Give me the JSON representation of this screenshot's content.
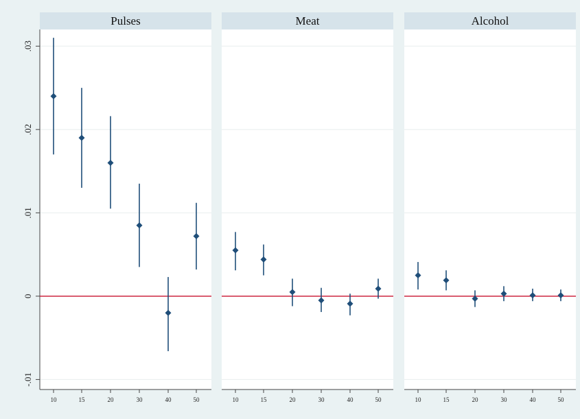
{
  "chart_data": {
    "type": "scatter",
    "subtype": "coefficient-plot-with-confidence-intervals",
    "categories": [
      "10",
      "15",
      "20",
      "30",
      "40",
      "50"
    ],
    "y_ticks": [
      -0.01,
      0,
      0.01,
      0.02,
      0.03
    ],
    "y_tick_labels": [
      "-.01",
      "0",
      ".01",
      ".02",
      ".03"
    ],
    "ylim": [
      -0.0112,
      0.032
    ],
    "reference_line": {
      "y": 0,
      "color": "#c8102e"
    },
    "grid": true,
    "colors": {
      "marker": "#1f4e79",
      "panel_header": "#d6e3ea",
      "panel_bg": "#ffffff",
      "background": "#eaf2f3",
      "grid": "#e8eeee"
    },
    "panels": [
      {
        "title": "Pulses",
        "points": [
          {
            "x": "10",
            "y": 0.024,
            "lo": 0.017,
            "hi": 0.031
          },
          {
            "x": "15",
            "y": 0.019,
            "lo": 0.013,
            "hi": 0.025
          },
          {
            "x": "20",
            "y": 0.016,
            "lo": 0.0105,
            "hi": 0.0216
          },
          {
            "x": "30",
            "y": 0.0085,
            "lo": 0.0035,
            "hi": 0.0135
          },
          {
            "x": "40",
            "y": -0.002,
            "lo": -0.0066,
            "hi": 0.0023
          },
          {
            "x": "50",
            "y": 0.0072,
            "lo": 0.0032,
            "hi": 0.0112
          }
        ]
      },
      {
        "title": "Meat",
        "points": [
          {
            "x": "10",
            "y": 0.0055,
            "lo": 0.0031,
            "hi": 0.0077
          },
          {
            "x": "15",
            "y": 0.0044,
            "lo": 0.0025,
            "hi": 0.0062
          },
          {
            "x": "20",
            "y": 0.0005,
            "lo": -0.0012,
            "hi": 0.0021
          },
          {
            "x": "30",
            "y": -0.0005,
            "lo": -0.0019,
            "hi": 0.001
          },
          {
            "x": "40",
            "y": -0.0009,
            "lo": -0.0023,
            "hi": 0.0003
          },
          {
            "x": "50",
            "y": 0.0009,
            "lo": -0.0003,
            "hi": 0.0021
          }
        ]
      },
      {
        "title": "Alcohol",
        "points": [
          {
            "x": "10",
            "y": 0.0025,
            "lo": 0.0008,
            "hi": 0.0041
          },
          {
            "x": "15",
            "y": 0.0019,
            "lo": 0.0007,
            "hi": 0.0031
          },
          {
            "x": "20",
            "y": -0.0003,
            "lo": -0.0013,
            "hi": 0.0007
          },
          {
            "x": "30",
            "y": 0.0003,
            "lo": -0.0006,
            "hi": 0.0012
          },
          {
            "x": "40",
            "y": 0.0001,
            "lo": -0.0006,
            "hi": 0.0009
          },
          {
            "x": "50",
            "y": 0.0001,
            "lo": -0.0006,
            "hi": 0.0008
          }
        ]
      }
    ]
  }
}
